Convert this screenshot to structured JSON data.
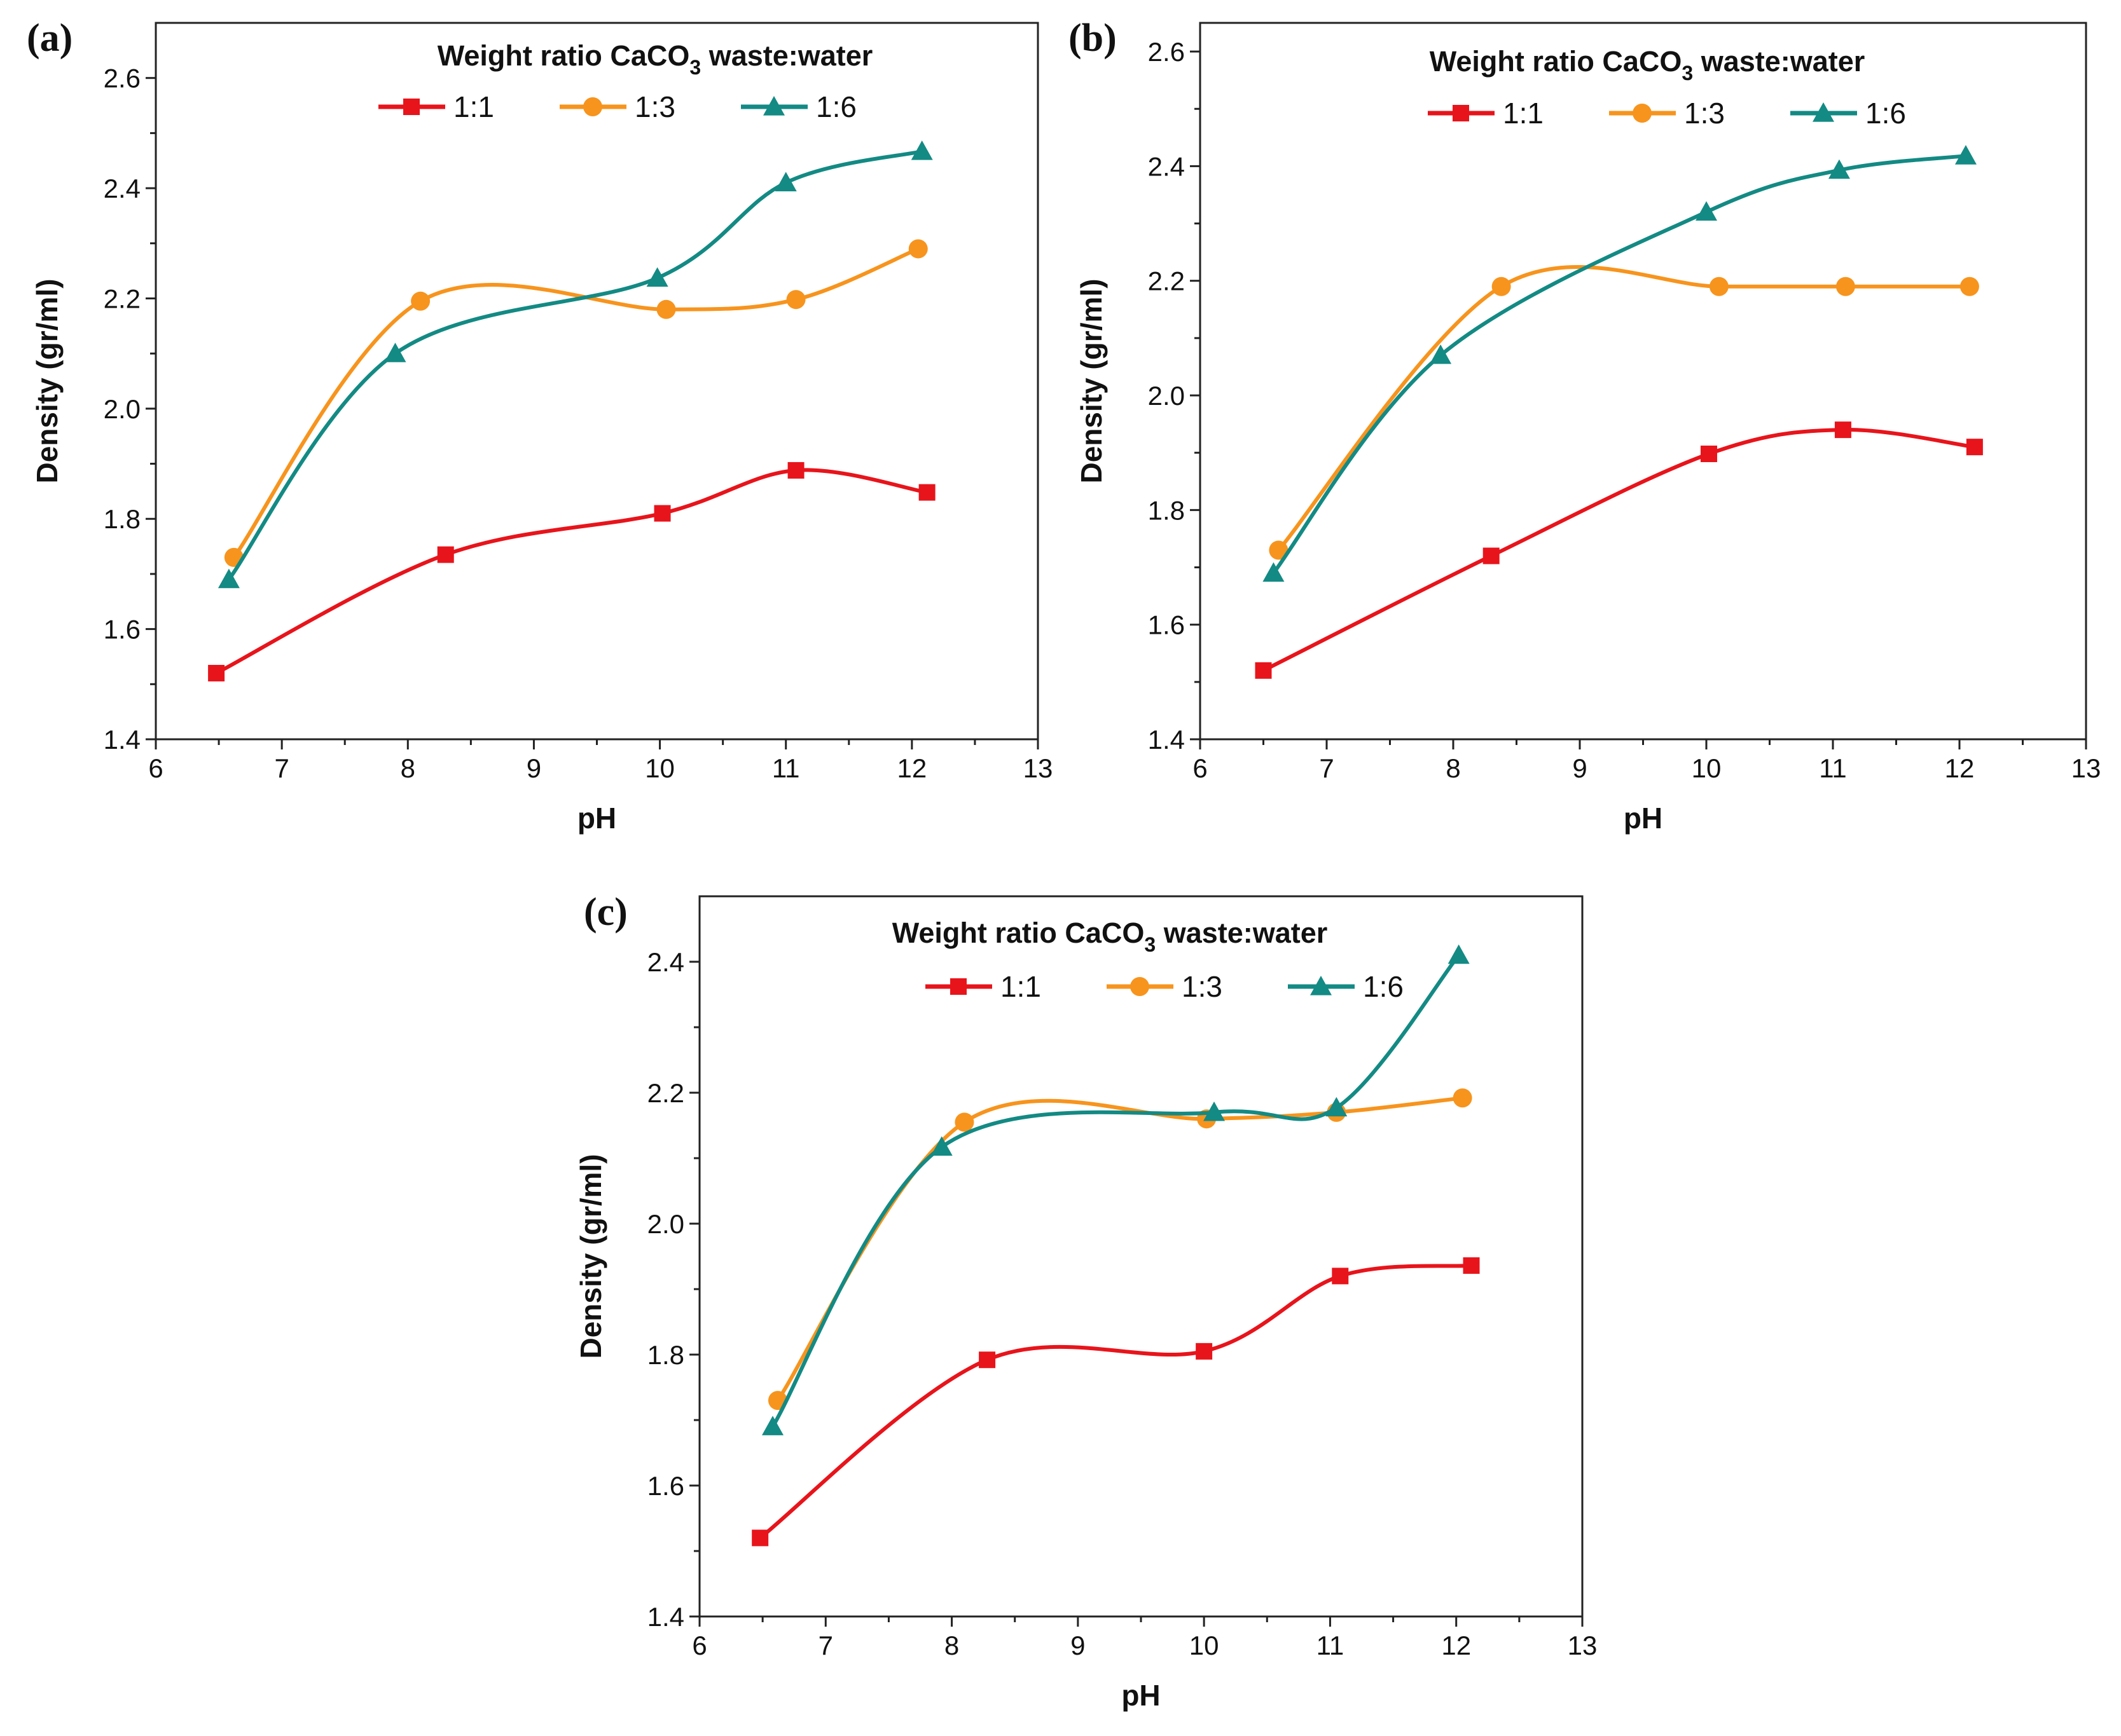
{
  "chart_data": [
    {
      "type": "line",
      "panel_label": "(a)",
      "legend_title": "Weight ratio CaCO",
      "legend_title_sub": "3",
      "legend_title_end": " waste:water",
      "xlabel": "pH",
      "ylabel": "Density (gr/ml)",
      "xlim": [
        6,
        13
      ],
      "ylim": [
        1.4,
        2.7
      ],
      "xticks": [
        "6",
        "7",
        "8",
        "9",
        "10",
        "11",
        "12",
        "13"
      ],
      "yticks": [
        "1.4",
        "1.6",
        "1.8",
        "2.0",
        "2.2",
        "2.4",
        "2.6"
      ],
      "series": [
        {
          "name": "1:1",
          "color": "#e8141b",
          "marker": "square",
          "x": [
            6.48,
            8.3,
            10.02,
            11.08,
            12.12
          ],
          "y": [
            1.52,
            1.735,
            1.81,
            1.888,
            1.848
          ]
        },
        {
          "name": "1:3",
          "color": "#f7941d",
          "marker": "circle",
          "x": [
            6.62,
            8.1,
            10.05,
            11.08,
            12.05
          ],
          "y": [
            1.73,
            2.195,
            2.18,
            2.198,
            2.29
          ]
        },
        {
          "name": "1:6",
          "color": "#138a84",
          "marker": "triangle",
          "x": [
            6.58,
            7.9,
            9.98,
            11.0,
            12.08
          ],
          "y": [
            1.69,
            2.1,
            2.237,
            2.41,
            2.467
          ]
        }
      ]
    },
    {
      "type": "line",
      "panel_label": "(b)",
      "legend_title": "Weight ratio CaCO",
      "legend_title_sub": "3",
      "legend_title_end": " waste:water",
      "xlabel": "pH",
      "ylabel": "Density (gr/ml)",
      "xlim": [
        6,
        13
      ],
      "ylim": [
        1.4,
        2.65
      ],
      "xticks": [
        "6",
        "7",
        "8",
        "9",
        "10",
        "11",
        "12",
        "13"
      ],
      "yticks": [
        "1.4",
        "1.6",
        "1.8",
        "2.0",
        "2.2",
        "2.4",
        "2.6"
      ],
      "series": [
        {
          "name": "1:1",
          "color": "#e8141b",
          "marker": "square",
          "x": [
            6.5,
            8.3,
            10.02,
            11.08,
            12.12
          ],
          "y": [
            1.52,
            1.72,
            1.898,
            1.94,
            1.91
          ]
        },
        {
          "name": "1:3",
          "color": "#f7941d",
          "marker": "circle",
          "x": [
            6.62,
            8.38,
            10.1,
            11.1,
            12.08
          ],
          "y": [
            1.73,
            2.19,
            2.19,
            2.19,
            2.19
          ]
        },
        {
          "name": "1:6",
          "color": "#138a84",
          "marker": "triangle",
          "x": [
            6.58,
            7.9,
            10.0,
            11.05,
            12.05
          ],
          "y": [
            1.69,
            2.07,
            2.32,
            2.393,
            2.418
          ]
        }
      ]
    },
    {
      "type": "line",
      "panel_label": "(c)",
      "legend_title": "Weight ratio CaCO",
      "legend_title_sub": "3",
      "legend_title_end": " waste:water",
      "xlabel": "pH",
      "ylabel": "Density (gr/ml)",
      "xlim": [
        6,
        13
      ],
      "ylim": [
        1.4,
        2.5
      ],
      "xticks": [
        "6",
        "7",
        "8",
        "9",
        "10",
        "11",
        "12",
        "13"
      ],
      "yticks": [
        "1.4",
        "1.6",
        "1.8",
        "2.0",
        "2.2",
        "2.4"
      ],
      "series": [
        {
          "name": "1:1",
          "color": "#e8141b",
          "marker": "square",
          "x": [
            6.48,
            8.28,
            10.0,
            11.08,
            12.12
          ],
          "y": [
            1.52,
            1.792,
            1.805,
            1.92,
            1.936
          ]
        },
        {
          "name": "1:3",
          "color": "#f7941d",
          "marker": "circle",
          "x": [
            6.62,
            8.1,
            10.02,
            11.05,
            12.05
          ],
          "y": [
            1.73,
            2.155,
            2.16,
            2.17,
            2.192
          ]
        },
        {
          "name": "1:6",
          "color": "#138a84",
          "marker": "triangle",
          "x": [
            6.58,
            7.92,
            10.08,
            11.05,
            12.02
          ],
          "y": [
            1.69,
            2.117,
            2.17,
            2.177,
            2.41
          ]
        }
      ]
    }
  ]
}
